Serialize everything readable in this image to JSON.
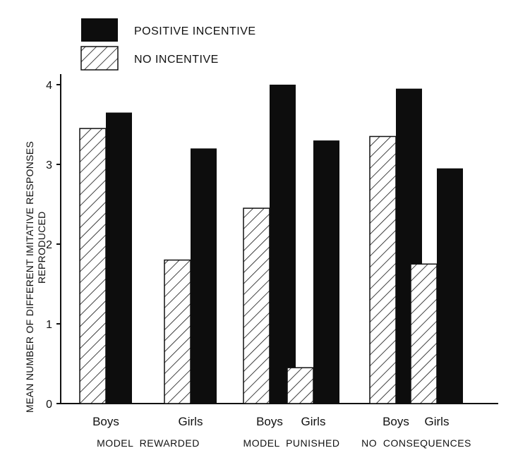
{
  "chart_data": {
    "type": "bar",
    "title": "",
    "xlabel": "",
    "ylabel": "MEAN NUMBER OF DIFFERENT IMITATIVE RESPONSES REPRODUCED",
    "ylabel_lines": [
      "MEAN NUMBER OF DIFFERENT IMITATIVE RESPONSES",
      "REPRODUCED"
    ],
    "ylim": [
      0,
      4
    ],
    "yticks": [
      "0",
      "1",
      "2",
      "3",
      "4"
    ],
    "grid": false,
    "legend_position": "top-left",
    "categories": [
      "Boys",
      "Girls",
      "Boys",
      "Girls",
      "Boys",
      "Girls"
    ],
    "groups": [
      "MODEL  REWARDED",
      "MODEL  PUNISHED",
      "NO  CONSEQUENCES"
    ],
    "series": [
      {
        "name": "NO INCENTIVE",
        "pattern": "hatched",
        "values": [
          3.45,
          1.8,
          2.45,
          0.45,
          3.35,
          1.75
        ]
      },
      {
        "name": "POSITIVE INCENTIVE",
        "pattern": "solid",
        "color": "#0d0d0d",
        "values": [
          3.65,
          3.2,
          4.0,
          3.3,
          3.95,
          2.95
        ]
      }
    ]
  }
}
